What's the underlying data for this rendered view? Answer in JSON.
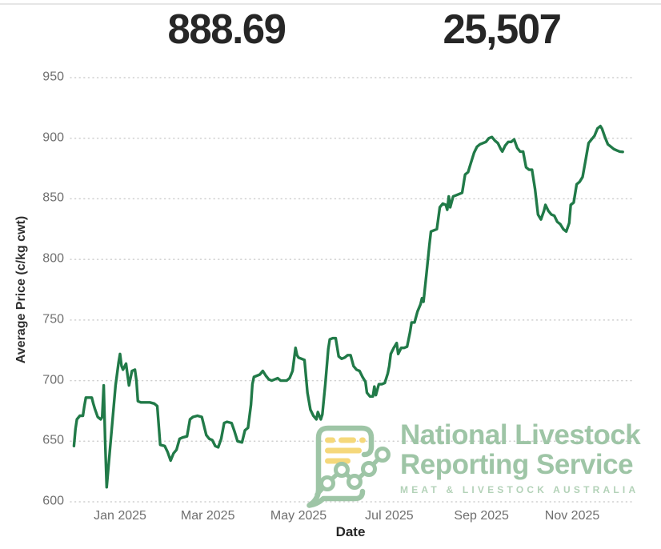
{
  "kpis": {
    "left_value": "888.69",
    "right_value": "25,507"
  },
  "watermark": {
    "line1": "National Livestock",
    "line2": "Reporting Service",
    "line3": "MEAT & LIVESTOCK AUSTRALIA",
    "brand_green": "#9ec5a6",
    "brand_green_light": "#b3d2b8",
    "brand_yellow": "#f5d87b"
  },
  "chart_data": {
    "type": "line",
    "title": "",
    "xlabel": "Date",
    "ylabel": "Average Price (c/kg cwt)",
    "ylim": [
      600,
      950
    ],
    "y_ticks": [
      600,
      650,
      700,
      750,
      800,
      850,
      900,
      950
    ],
    "x_ticks": [
      {
        "label": "Jan 2025",
        "date": "2025-01-01"
      },
      {
        "label": "Mar 2025",
        "date": "2025-03-01"
      },
      {
        "label": "May 2025",
        "date": "2025-05-01"
      },
      {
        "label": "Jul 2025",
        "date": "2025-07-01"
      },
      {
        "label": "Sep 2025",
        "date": "2025-09-01"
      },
      {
        "label": "Nov 2025",
        "date": "2025-11-01"
      }
    ],
    "grid": "horizontal-dotted",
    "legend": "none",
    "line_color": "#217a48",
    "series": [
      {
        "name": "Average Price (c/kg cwt)",
        "points": [
          [
            "2024-12-01",
            646
          ],
          [
            "2024-12-02",
            660
          ],
          [
            "2024-12-03",
            668
          ],
          [
            "2024-12-05",
            671
          ],
          [
            "2024-12-07",
            671
          ],
          [
            "2024-12-08",
            679
          ],
          [
            "2024-12-09",
            686
          ],
          [
            "2024-12-11",
            686
          ],
          [
            "2024-12-13",
            686
          ],
          [
            "2024-12-14",
            681
          ],
          [
            "2024-12-15",
            677
          ],
          [
            "2024-12-17",
            670
          ],
          [
            "2024-12-19",
            668
          ],
          [
            "2024-12-20",
            670
          ],
          [
            "2024-12-21",
            696
          ],
          [
            "2024-12-22",
            650
          ],
          [
            "2024-12-23",
            612
          ],
          [
            "2024-12-25",
            640
          ],
          [
            "2024-12-27",
            668
          ],
          [
            "2024-12-29",
            696
          ],
          [
            "2024-12-31",
            715
          ],
          [
            "2025-01-01",
            722
          ],
          [
            "2025-01-02",
            712
          ],
          [
            "2025-01-03",
            709
          ],
          [
            "2025-01-05",
            714
          ],
          [
            "2025-01-06",
            705
          ],
          [
            "2025-01-07",
            696
          ],
          [
            "2025-01-09",
            708
          ],
          [
            "2025-01-11",
            709
          ],
          [
            "2025-01-12",
            700
          ],
          [
            "2025-01-13",
            683
          ],
          [
            "2025-01-15",
            682
          ],
          [
            "2025-01-18",
            682
          ],
          [
            "2025-01-21",
            682
          ],
          [
            "2025-01-24",
            681
          ],
          [
            "2025-01-26",
            679
          ],
          [
            "2025-01-28",
            647
          ],
          [
            "2025-01-31",
            646
          ],
          [
            "2025-02-02",
            641
          ],
          [
            "2025-02-04",
            634
          ],
          [
            "2025-02-06",
            640
          ],
          [
            "2025-02-08",
            643
          ],
          [
            "2025-02-10",
            652
          ],
          [
            "2025-02-12",
            653
          ],
          [
            "2025-02-15",
            654
          ],
          [
            "2025-02-17",
            668
          ],
          [
            "2025-02-19",
            670
          ],
          [
            "2025-02-22",
            671
          ],
          [
            "2025-02-25",
            670
          ],
          [
            "2025-02-28",
            655
          ],
          [
            "2025-03-02",
            652
          ],
          [
            "2025-03-04",
            651
          ],
          [
            "2025-03-06",
            646
          ],
          [
            "2025-03-08",
            645
          ],
          [
            "2025-03-10",
            652
          ],
          [
            "2025-03-12",
            665
          ],
          [
            "2025-03-14",
            666
          ],
          [
            "2025-03-17",
            665
          ],
          [
            "2025-03-19",
            658
          ],
          [
            "2025-03-21",
            650
          ],
          [
            "2025-03-24",
            649
          ],
          [
            "2025-03-26",
            659
          ],
          [
            "2025-03-28",
            661
          ],
          [
            "2025-03-30",
            680
          ],
          [
            "2025-03-31",
            697
          ],
          [
            "2025-04-01",
            703
          ],
          [
            "2025-04-03",
            704
          ],
          [
            "2025-04-05",
            705
          ],
          [
            "2025-04-07",
            708
          ],
          [
            "2025-04-09",
            704
          ],
          [
            "2025-04-11",
            701
          ],
          [
            "2025-04-13",
            700
          ],
          [
            "2025-04-15",
            701
          ],
          [
            "2025-04-17",
            702
          ],
          [
            "2025-04-19",
            700
          ],
          [
            "2025-04-21",
            700
          ],
          [
            "2025-04-23",
            700
          ],
          [
            "2025-04-25",
            702
          ],
          [
            "2025-04-27",
            708
          ],
          [
            "2025-04-29",
            727
          ],
          [
            "2025-04-30",
            721
          ],
          [
            "2025-05-01",
            719
          ],
          [
            "2025-05-03",
            718
          ],
          [
            "2025-05-05",
            717
          ],
          [
            "2025-05-07",
            690
          ],
          [
            "2025-05-09",
            676
          ],
          [
            "2025-05-11",
            671
          ],
          [
            "2025-05-13",
            668
          ],
          [
            "2025-05-14",
            674
          ],
          [
            "2025-05-16",
            668
          ],
          [
            "2025-05-17",
            672
          ],
          [
            "2025-05-19",
            697
          ],
          [
            "2025-05-21",
            726
          ],
          [
            "2025-05-22",
            734
          ],
          [
            "2025-05-24",
            735
          ],
          [
            "2025-05-26",
            735
          ],
          [
            "2025-05-28",
            720
          ],
          [
            "2025-05-30",
            718
          ],
          [
            "2025-06-01",
            719
          ],
          [
            "2025-06-03",
            721
          ],
          [
            "2025-06-05",
            721
          ],
          [
            "2025-06-07",
            712
          ],
          [
            "2025-06-09",
            709
          ],
          [
            "2025-06-11",
            708
          ],
          [
            "2025-06-13",
            703
          ],
          [
            "2025-06-15",
            699
          ],
          [
            "2025-06-16",
            690
          ],
          [
            "2025-06-18",
            687
          ],
          [
            "2025-06-20",
            687
          ],
          [
            "2025-06-21",
            695
          ],
          [
            "2025-06-22",
            688
          ],
          [
            "2025-06-24",
            697
          ],
          [
            "2025-06-26",
            697
          ],
          [
            "2025-06-28",
            698
          ],
          [
            "2025-06-30",
            706
          ],
          [
            "2025-07-01",
            712
          ],
          [
            "2025-07-02",
            722
          ],
          [
            "2025-07-04",
            727
          ],
          [
            "2025-07-06",
            731
          ],
          [
            "2025-07-07",
            722
          ],
          [
            "2025-07-09",
            727
          ],
          [
            "2025-07-11",
            727
          ],
          [
            "2025-07-13",
            728
          ],
          [
            "2025-07-15",
            740
          ],
          [
            "2025-07-16",
            748
          ],
          [
            "2025-07-18",
            748
          ],
          [
            "2025-07-20",
            757
          ],
          [
            "2025-07-22",
            763
          ],
          [
            "2025-07-23",
            768
          ],
          [
            "2025-07-24",
            765
          ],
          [
            "2025-07-26",
            788
          ],
          [
            "2025-07-28",
            812
          ],
          [
            "2025-07-29",
            823
          ],
          [
            "2025-07-31",
            824
          ],
          [
            "2025-08-02",
            825
          ],
          [
            "2025-08-04",
            843
          ],
          [
            "2025-08-06",
            846
          ],
          [
            "2025-08-08",
            845
          ],
          [
            "2025-08-09",
            841
          ],
          [
            "2025-08-10",
            852
          ],
          [
            "2025-08-11",
            843
          ],
          [
            "2025-08-13",
            852
          ],
          [
            "2025-08-15",
            853
          ],
          [
            "2025-08-17",
            854
          ],
          [
            "2025-08-19",
            855
          ],
          [
            "2025-08-21",
            870
          ],
          [
            "2025-08-23",
            872
          ],
          [
            "2025-08-25",
            880
          ],
          [
            "2025-08-27",
            888
          ],
          [
            "2025-08-29",
            893
          ],
          [
            "2025-08-31",
            895
          ],
          [
            "2025-09-02",
            896
          ],
          [
            "2025-09-04",
            897
          ],
          [
            "2025-09-06",
            900
          ],
          [
            "2025-09-08",
            901
          ],
          [
            "2025-09-10",
            898
          ],
          [
            "2025-09-12",
            896
          ],
          [
            "2025-09-14",
            891
          ],
          [
            "2025-09-15",
            889
          ],
          [
            "2025-09-17",
            894
          ],
          [
            "2025-09-19",
            897
          ],
          [
            "2025-09-21",
            897
          ],
          [
            "2025-09-23",
            899
          ],
          [
            "2025-09-25",
            892
          ],
          [
            "2025-09-27",
            889
          ],
          [
            "2025-09-29",
            889
          ],
          [
            "2025-10-01",
            876
          ],
          [
            "2025-10-03",
            874
          ],
          [
            "2025-10-05",
            874
          ],
          [
            "2025-10-07",
            858
          ],
          [
            "2025-10-09",
            837
          ],
          [
            "2025-10-11",
            833
          ],
          [
            "2025-10-13",
            840
          ],
          [
            "2025-10-14",
            845
          ],
          [
            "2025-10-16",
            840
          ],
          [
            "2025-10-18",
            837
          ],
          [
            "2025-10-20",
            836
          ],
          [
            "2025-10-22",
            831
          ],
          [
            "2025-10-24",
            829
          ],
          [
            "2025-10-26",
            825
          ],
          [
            "2025-10-28",
            823
          ],
          [
            "2025-10-30",
            830
          ],
          [
            "2025-10-31",
            845
          ],
          [
            "2025-11-02",
            847
          ],
          [
            "2025-11-04",
            862
          ],
          [
            "2025-11-06",
            864
          ],
          [
            "2025-11-08",
            868
          ],
          [
            "2025-11-10",
            882
          ],
          [
            "2025-11-12",
            896
          ],
          [
            "2025-11-14",
            899
          ],
          [
            "2025-11-16",
            902
          ],
          [
            "2025-11-18",
            908
          ],
          [
            "2025-11-20",
            910
          ],
          [
            "2025-11-21",
            908
          ],
          [
            "2025-11-23",
            901
          ],
          [
            "2025-11-25",
            895
          ],
          [
            "2025-11-27",
            893
          ],
          [
            "2025-11-29",
            891
          ],
          [
            "2025-12-01",
            890
          ],
          [
            "2025-12-03",
            889
          ],
          [
            "2025-12-05",
            888.69
          ]
        ]
      }
    ]
  }
}
